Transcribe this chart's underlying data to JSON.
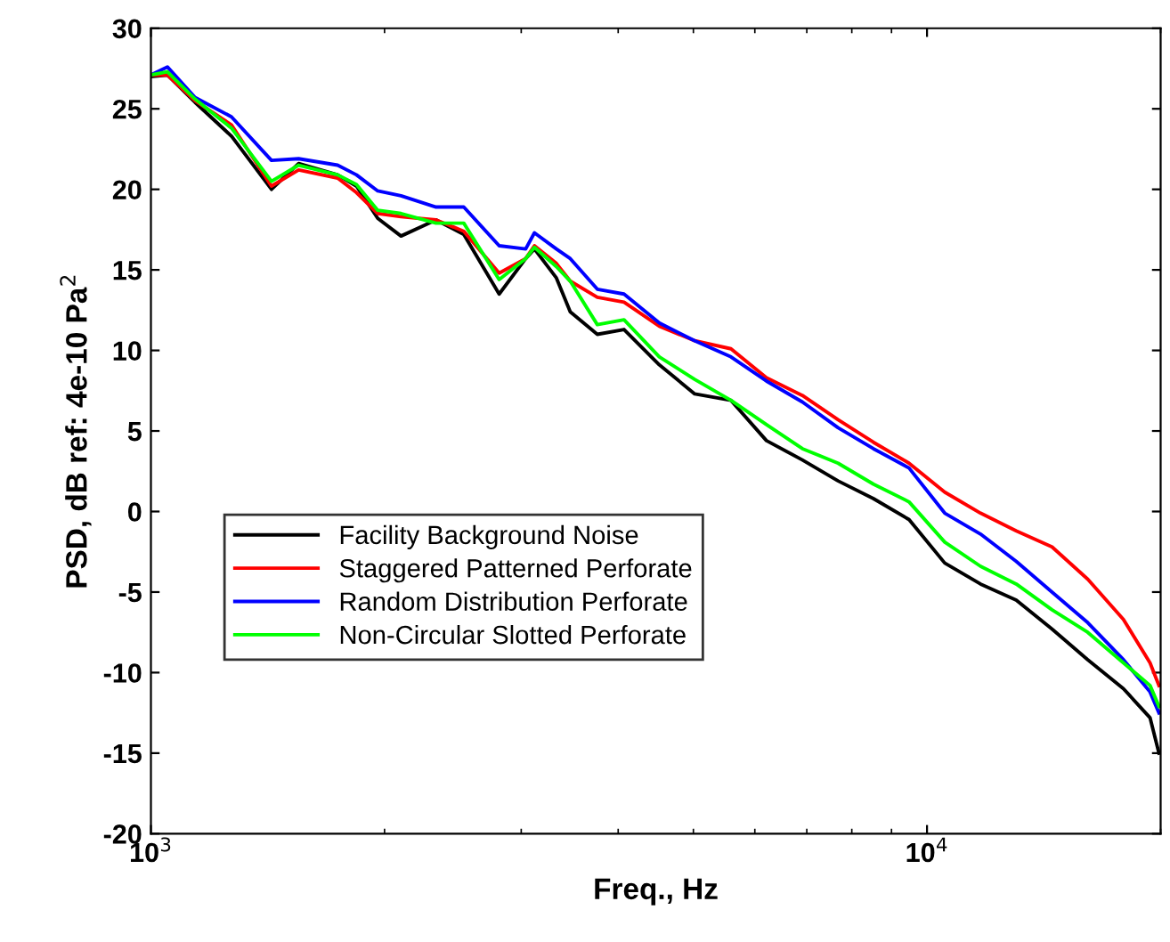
{
  "chart_data": {
    "type": "line",
    "xlabel": "Freq., Hz",
    "ylabel": "PSD, dB ref: 4e-10 Pa$^{2}$",
    "log": "x",
    "x": [
      1000,
      1050,
      1140,
      1270,
      1430,
      1550,
      1740,
      1840,
      1960,
      2100,
      2330,
      2530,
      2810,
      3040,
      3120,
      3330,
      3470,
      3760,
      4070,
      4520,
      5020,
      5590,
      6210,
      6910,
      7680,
      8530,
      9480,
      10540,
      11720,
      13030,
      14490,
      16110,
      17910,
      19380,
      19900
    ],
    "xlim": [
      1000,
      20000
    ],
    "ylim": [
      -20,
      30
    ],
    "xticks": [
      {
        "value": 1000,
        "label": "10$^{3}$"
      },
      {
        "value": 10000,
        "label": "10$^{4}$"
      }
    ],
    "yticks": [
      -20,
      -15,
      -10,
      -5,
      0,
      5,
      10,
      15,
      20,
      25,
      30
    ],
    "grid": false,
    "legend": "bottom left",
    "marker": "none",
    "line_style": "solid",
    "series": [
      {
        "name": "Facility Background Noise",
        "color": "#000000",
        "values": [
          27.0,
          27.1,
          25.4,
          23.3,
          20.0,
          21.6,
          20.9,
          20.2,
          18.2,
          17.1,
          18.1,
          17.2,
          13.5,
          15.7,
          16.3,
          14.5,
          12.4,
          11.0,
          11.3,
          9.1,
          7.3,
          6.9,
          4.4,
          3.2,
          1.9,
          0.8,
          -0.5,
          -3.2,
          -4.5,
          -5.5,
          -7.3,
          -9.2,
          -11.0,
          -12.8,
          -15.0
        ]
      },
      {
        "name": "Staggered Patterned Perforate",
        "color": "#ff0000",
        "values": [
          27.1,
          27.1,
          25.5,
          24.0,
          20.2,
          21.2,
          20.7,
          19.8,
          18.5,
          18.3,
          18.1,
          17.4,
          14.8,
          15.7,
          16.5,
          15.4,
          14.3,
          13.3,
          13.0,
          11.5,
          10.6,
          10.1,
          8.3,
          7.2,
          5.7,
          4.3,
          3.0,
          1.2,
          -0.1,
          -1.2,
          -2.2,
          -4.2,
          -6.7,
          -9.4,
          -10.8
        ]
      },
      {
        "name": "Random Distribution Perforate",
        "color": "#0000ff",
        "values": [
          27.1,
          27.6,
          25.7,
          24.5,
          21.8,
          21.9,
          21.5,
          20.9,
          19.9,
          19.6,
          18.9,
          18.9,
          16.5,
          16.3,
          17.3,
          16.3,
          15.7,
          13.8,
          13.5,
          11.7,
          10.6,
          9.6,
          8.1,
          6.8,
          5.2,
          3.9,
          2.7,
          -0.1,
          -1.4,
          -3.1,
          -5.0,
          -6.9,
          -9.2,
          -11.2,
          -12.5
        ]
      },
      {
        "name": "Non-Circular Slotted Perforate",
        "color": "#00ff00",
        "values": [
          27.1,
          27.3,
          25.6,
          23.8,
          20.5,
          21.5,
          20.9,
          20.3,
          18.7,
          18.5,
          17.9,
          17.9,
          14.4,
          15.7,
          16.4,
          15.2,
          14.3,
          11.6,
          11.9,
          9.6,
          8.2,
          6.9,
          5.4,
          3.9,
          3.0,
          1.7,
          0.6,
          -1.9,
          -3.4,
          -4.5,
          -6.1,
          -7.5,
          -9.4,
          -10.8,
          -12.1
        ]
      }
    ]
  }
}
